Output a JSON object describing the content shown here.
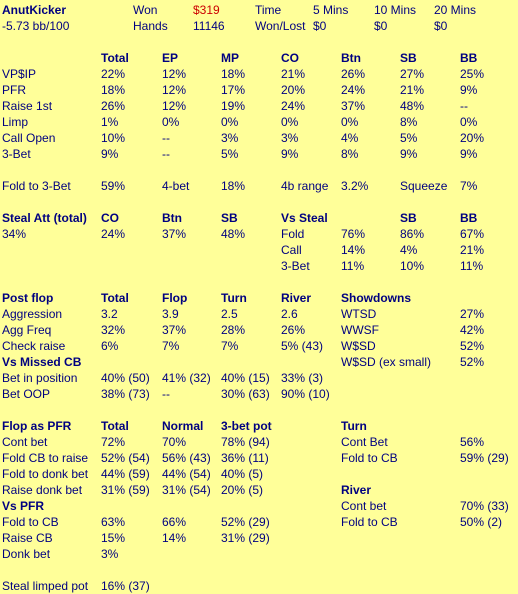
{
  "header": {
    "player": "AnutKicker",
    "bb100": "-5.73 bb/100",
    "won_label": "Won",
    "won_value": "$319",
    "hands_label": "Hands",
    "hands_value": "11146",
    "time_label": "Time",
    "wonlost_label": "Won/Lost",
    "periods": [
      "5 Mins",
      "10 Mins",
      "20 Mins"
    ],
    "wonlost": [
      "$0",
      "$0",
      "$0"
    ]
  },
  "preflop": {
    "headers": [
      "Total",
      "EP",
      "MP",
      "CO",
      "Btn",
      "SB",
      "BB"
    ],
    "rows": [
      {
        "label": "VP$IP",
        "values": [
          "22%",
          "12%",
          "18%",
          "21%",
          "26%",
          "27%",
          "25%"
        ]
      },
      {
        "label": "PFR",
        "values": [
          "18%",
          "12%",
          "17%",
          "20%",
          "24%",
          "21%",
          "9%"
        ]
      },
      {
        "label": "Raise 1st",
        "values": [
          "26%",
          "12%",
          "19%",
          "24%",
          "37%",
          "48%",
          "--"
        ]
      },
      {
        "label": "Limp",
        "values": [
          "1%",
          "0%",
          "0%",
          "0%",
          "0%",
          "8%",
          "0%"
        ]
      },
      {
        "label": "Call Open",
        "values": [
          "10%",
          "--",
          "3%",
          "3%",
          "4%",
          "5%",
          "20%"
        ]
      },
      {
        "label": "3-Bet",
        "values": [
          "9%",
          "--",
          "5%",
          "9%",
          "8%",
          "9%",
          "9%"
        ]
      }
    ],
    "fold3bet_label": "Fold to 3-Bet",
    "fold3bet_value": "59%",
    "fourbet_label": "4-bet",
    "fourbet_value": "18%",
    "fourbet_range_label": "4b range",
    "fourbet_range_value": "3.2%",
    "squeeze_label": "Squeeze",
    "squeeze_value": "7%"
  },
  "steal": {
    "title": "Steal Att (total)",
    "total": "34%",
    "headers": [
      "CO",
      "Btn",
      "SB"
    ],
    "values": [
      "24%",
      "37%",
      "48%"
    ],
    "vs_title": "Vs Steal",
    "vs_headers": [
      "SB",
      "BB"
    ],
    "vs_rows": [
      {
        "label": "Fold",
        "values": [
          "76%",
          "86%",
          "67%"
        ]
      },
      {
        "label": "Call",
        "values": [
          "14%",
          "4%",
          "21%"
        ]
      },
      {
        "label": "3-Bet",
        "values": [
          "11%",
          "10%",
          "11%"
        ]
      }
    ]
  },
  "postflop": {
    "title": "Post flop",
    "headers": [
      "Total",
      "Flop",
      "Turn",
      "River"
    ],
    "rows": [
      {
        "label": "Aggression",
        "values": [
          "3.2",
          "3.9",
          "2.5",
          "2.6"
        ]
      },
      {
        "label": "Agg Freq",
        "values": [
          "32%",
          "37%",
          "28%",
          "26%"
        ]
      },
      {
        "label": "Check raise",
        "values": [
          "6%",
          "7%",
          "7%",
          "5%   (43)"
        ]
      }
    ],
    "showdowns_title": "Showdowns",
    "showdowns": [
      {
        "label": "WTSD",
        "value": "27%"
      },
      {
        "label": "WWSF",
        "value": "42%"
      },
      {
        "label": "W$SD",
        "value": "52%"
      },
      {
        "label": "W$SD (ex small)",
        "value": "52%"
      }
    ],
    "missed_title": "Vs Missed CB",
    "missed_rows": [
      {
        "label": "Bet in position",
        "values": [
          "40%  (50)",
          "41%  (32)",
          "40%  (15)",
          "33%  (3)"
        ]
      },
      {
        "label": "Bet OOP",
        "values": [
          "38%  (73)",
          "--",
          "30%  (63)",
          "90%  (10)"
        ]
      }
    ]
  },
  "flop_pfr": {
    "title": "Flop as PFR",
    "headers": [
      "Total",
      "Normal",
      "3-bet pot"
    ],
    "rows": [
      {
        "label": "Cont bet",
        "values": [
          "72%",
          "70%",
          "78%  (94)"
        ]
      },
      {
        "label": "Fold CB to raise",
        "values": [
          "52%  (54)",
          "56%  (43)",
          "36%  (11)"
        ]
      },
      {
        "label": "Fold to donk bet",
        "values": [
          "44%  (59)",
          "44%  (54)",
          "40%  (5)"
        ]
      },
      {
        "label": "Raise donk bet",
        "values": [
          "31%  (59)",
          "31%  (54)",
          "20%  (5)"
        ]
      }
    ],
    "vs_title": "Vs PFR",
    "vs_rows": [
      {
        "label": "Fold to CB",
        "values": [
          "63%",
          "66%",
          "52%  (29)"
        ]
      },
      {
        "label": "Raise CB",
        "values": [
          "15%",
          "14%",
          "31%  (29)"
        ]
      },
      {
        "label": "Donk bet",
        "values": [
          "3%",
          "",
          ""
        ]
      }
    ],
    "steal_limped_label": "Steal limped pot",
    "steal_limped_value": "16%  (37)"
  },
  "turn": {
    "title": "Turn",
    "rows": [
      {
        "label": "Cont Bet",
        "value": "56%"
      },
      {
        "label": "Fold to CB",
        "value": "59%  (29)"
      }
    ]
  },
  "river": {
    "title": "River",
    "rows": [
      {
        "label": "Cont bet",
        "value": "70%  (33)"
      },
      {
        "label": "Fold to CB",
        "value": "50%  (2)"
      }
    ]
  }
}
